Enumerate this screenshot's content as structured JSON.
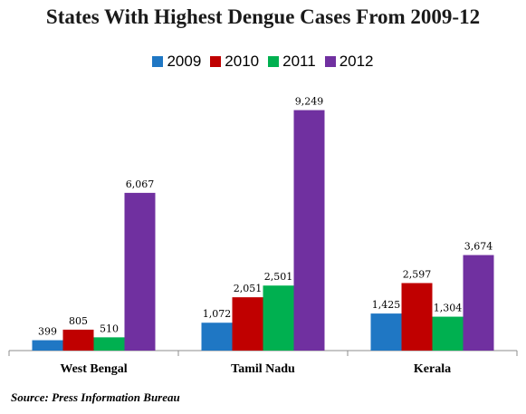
{
  "chart_data": {
    "type": "bar",
    "title": "States With Highest Dengue Cases From 2009-12",
    "categories": [
      "West Bengal",
      "Tamil Nadu",
      "Kerala"
    ],
    "series": [
      {
        "name": "2009",
        "color": "#1f77c4",
        "values": [
          399,
          1072,
          1425
        ],
        "labels": [
          "399",
          "1,072",
          "1,425"
        ]
      },
      {
        "name": "2010",
        "color": "#c00000",
        "values": [
          805,
          2051,
          2597
        ],
        "labels": [
          "805",
          "2,051",
          "2,597"
        ]
      },
      {
        "name": "2011",
        "color": "#00b050",
        "values": [
          510,
          2501,
          1304
        ],
        "labels": [
          "510",
          "2,501",
          "1,304"
        ]
      },
      {
        "name": "2012",
        "color": "#7030a0",
        "values": [
          6067,
          9249,
          3674
        ],
        "labels": [
          "6,067",
          "9,249",
          "3,674"
        ]
      }
    ],
    "ylim": [
      0,
      10000
    ],
    "grid": false,
    "legend_position": "top-center"
  },
  "source": "Source: Press Information Bureau"
}
